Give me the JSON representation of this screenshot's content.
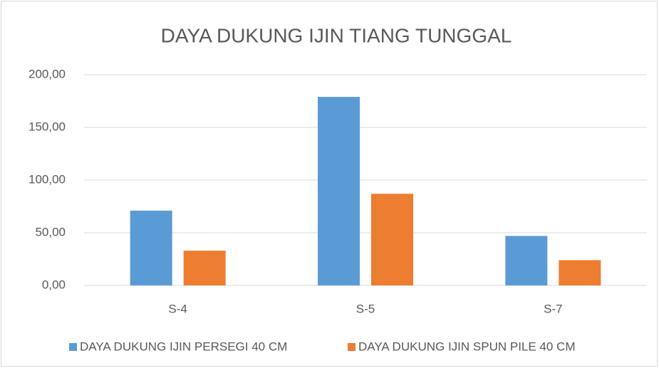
{
  "chart_data": {
    "type": "bar",
    "title": "DAYA DUKUNG IJIN TIANG TUNGGAL",
    "categories": [
      "S-4",
      "S-5",
      "S-7"
    ],
    "series": [
      {
        "name": "DAYA DUKUNG IJIN PERSEGI 40 CM",
        "color": "#5b9bd5",
        "values": [
          71,
          179,
          47
        ]
      },
      {
        "name": "DAYA DUKUNG IJIN SPUN PILE 40 CM",
        "color": "#ed7d31",
        "values": [
          33,
          87,
          24
        ]
      }
    ],
    "ylim": [
      0,
      200
    ],
    "yticks": [
      {
        "value": 0,
        "label": "0,00"
      },
      {
        "value": 50,
        "label": "50,00"
      },
      {
        "value": 100,
        "label": "100,00"
      },
      {
        "value": 150,
        "label": "150,00"
      },
      {
        "value": 200,
        "label": "200,00"
      }
    ],
    "grid": true,
    "legend": "bottom"
  }
}
